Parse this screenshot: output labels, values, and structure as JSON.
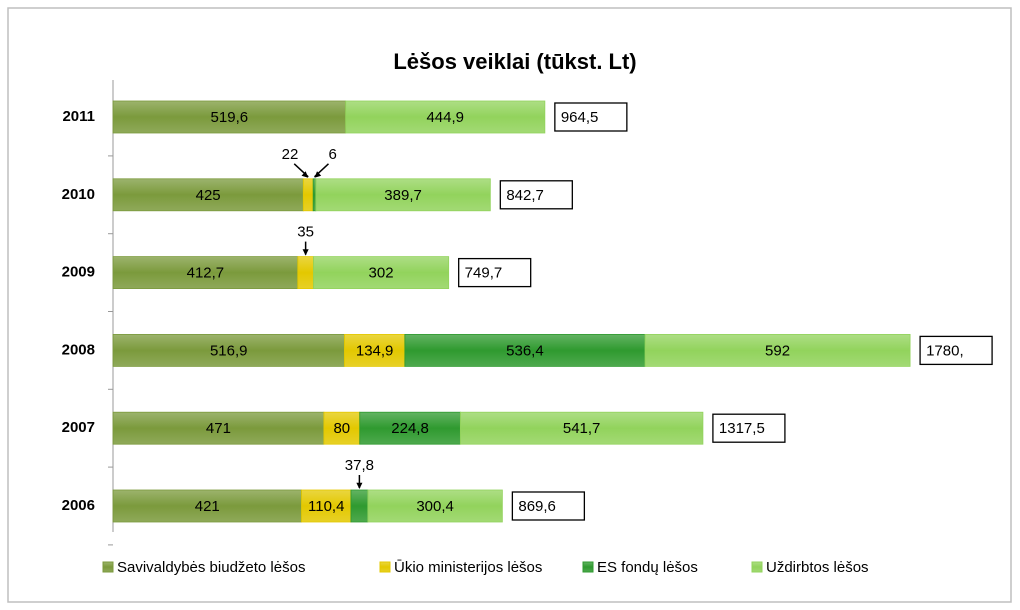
{
  "chart_data": {
    "type": "stacked-bar-horizontal",
    "title": "Lėšos veiklai (tūkst. Lt)",
    "categories": [
      "2011",
      "2010",
      "2009",
      "2008",
      "2007",
      "2006"
    ],
    "series": [
      {
        "name": "Savivaldybės biudžeto lėšos",
        "color": "#7b9a3c",
        "values": [
          519.6,
          425,
          412.7,
          516.9,
          471,
          421
        ],
        "value_labels": [
          "519,6",
          "425",
          "412,7",
          "516,9",
          "471",
          "421"
        ]
      },
      {
        "name": "Ūkio ministerijos lėšos",
        "color": "#e3c800",
        "values": [
          null,
          22,
          35,
          134.9,
          80,
          110.4
        ],
        "value_labels": [
          null,
          "22",
          "35",
          "134,9",
          "80",
          "110,4"
        ]
      },
      {
        "name": "ES fondų lėšos",
        "color": "#2f9a2f",
        "values": [
          null,
          6,
          null,
          536.4,
          224.8,
          37.8
        ],
        "value_labels": [
          null,
          "6",
          null,
          "536,4",
          "224,8",
          "37,8"
        ]
      },
      {
        "name": "Uždirbtos lėšos",
        "color": "#92d35c",
        "values": [
          444.9,
          389.7,
          302,
          592,
          541.7,
          300.4
        ],
        "value_labels": [
          "444,9",
          "389,7",
          "302",
          "592",
          "541,7",
          "300,4"
        ]
      }
    ],
    "totals": [
      964.5,
      842.7,
      749.7,
      1780,
      1317.5,
      869.6
    ],
    "total_labels": [
      "964,5",
      "842,7",
      "749,7",
      "1780,",
      "1317,5",
      "869,6"
    ],
    "legend": "bottom"
  }
}
